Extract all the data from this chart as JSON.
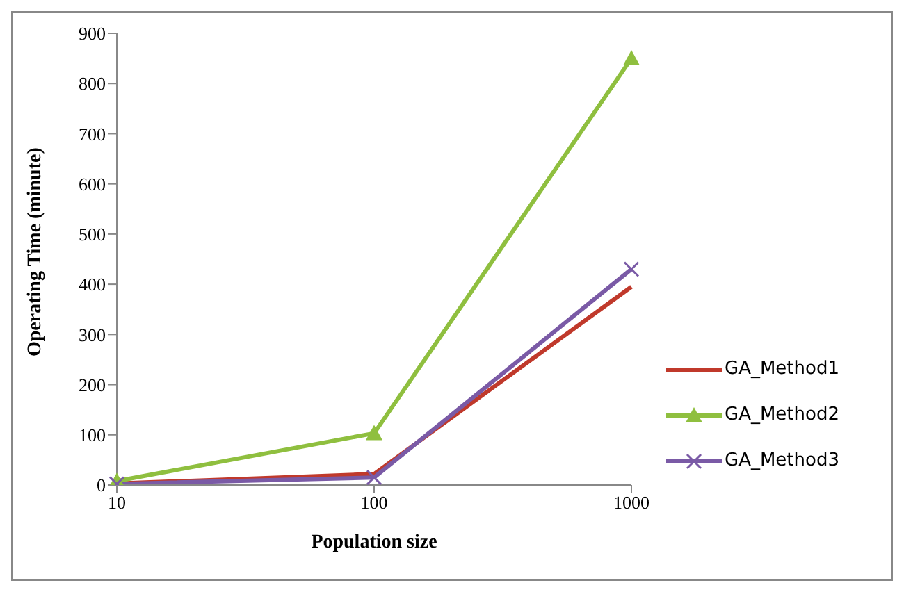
{
  "chart_data": {
    "type": "line",
    "xlabel": "Population size",
    "ylabel": "Operating Time (minute)",
    "categories": [
      "10",
      "100",
      "1000"
    ],
    "series": [
      {
        "name": "GA_Method1",
        "color": "#c0392b",
        "marker": "none",
        "values": [
          3,
          22,
          395
        ]
      },
      {
        "name": "GA_Method2",
        "color": "#8fbf3f",
        "marker": "triangle",
        "values": [
          8,
          103,
          850
        ]
      },
      {
        "name": "GA_Method3",
        "color": "#7a5aa6",
        "marker": "cross",
        "values": [
          2,
          15,
          430
        ]
      }
    ],
    "ylim": [
      0,
      900
    ],
    "yticks": [
      0,
      100,
      200,
      300,
      400,
      500,
      600,
      700,
      800,
      900
    ],
    "grid": false,
    "legend": "right"
  }
}
